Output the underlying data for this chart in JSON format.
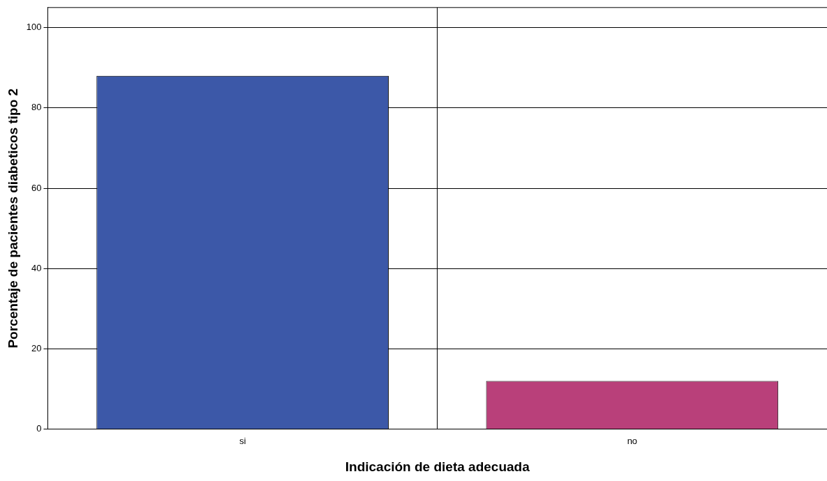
{
  "chart_data": {
    "type": "bar",
    "xlabel": "Indicación de dieta adecuada",
    "ylabel": "Porcentaje de pacientes diabeticos tipo 2",
    "categories": [
      "si",
      "no"
    ],
    "values": [
      88,
      12
    ],
    "colors": [
      "#3c58a8",
      "#b9407a"
    ],
    "ylim": [
      0,
      105
    ],
    "yticks": [
      0,
      20,
      40,
      60,
      80,
      100
    ],
    "grid": true,
    "legend": false
  }
}
